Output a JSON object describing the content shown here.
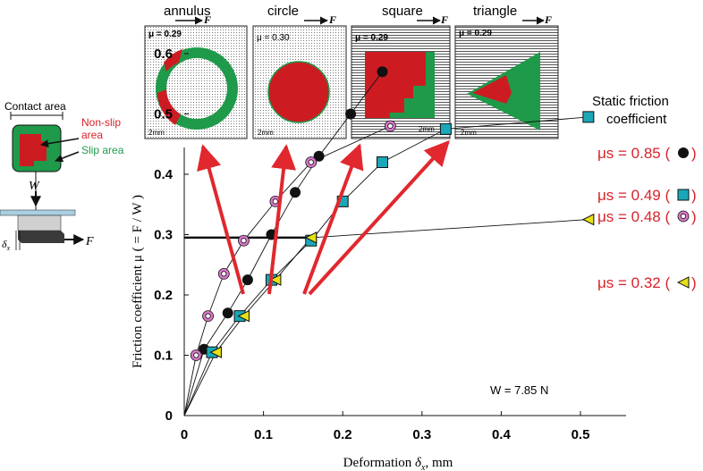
{
  "chart_data": {
    "type": "scatter",
    "xlabel_text": "Deformation",
    "xlabel_symbol": "δ",
    "xlabel_sub": "x",
    "xlabel_unit": ", mm",
    "ylabel": "Friction coefficient  μ ( = F / W )",
    "xlim": [
      0,
      0.55
    ],
    "ylim": [
      0,
      0.7
    ],
    "x_ticks": [
      "0",
      "0.1",
      "0.2",
      "0.3",
      "0.4",
      "0.5"
    ],
    "y_ticks": [
      "0",
      "0.1",
      "0.2",
      "0.3",
      "0.4",
      "0.5",
      "0.6"
    ],
    "x_tick_values": [
      0,
      0.1,
      0.2,
      0.3,
      0.4,
      0.5
    ],
    "y_tick_values": [
      0,
      0.1,
      0.2,
      0.3,
      0.4,
      0.5,
      0.6
    ],
    "load_annotation": "W = 7.85 N",
    "horizontal_reference": {
      "y": 0.295,
      "x_from": 0,
      "x_to": 0.16
    },
    "series": [
      {
        "name": "circle",
        "legend_text": "μs = 0.85 (",
        "legend_close": ")",
        "marker": "circle",
        "color": "#111111",
        "points": [
          [
            0.025,
            0.11
          ],
          [
            0.055,
            0.17
          ],
          [
            0.08,
            0.225
          ],
          [
            0.11,
            0.3
          ],
          [
            0.14,
            0.37
          ],
          [
            0.17,
            0.43
          ],
          [
            0.21,
            0.5
          ],
          [
            0.25,
            0.57
          ]
        ]
      },
      {
        "name": "square",
        "legend_text": "μs = 0.49 (",
        "legend_close": ")",
        "marker": "square",
        "color": "#1aa7b8",
        "points": [
          [
            0.035,
            0.105
          ],
          [
            0.07,
            0.165
          ],
          [
            0.11,
            0.225
          ],
          [
            0.16,
            0.29
          ],
          [
            0.2,
            0.355
          ],
          [
            0.25,
            0.42
          ],
          [
            0.33,
            0.475
          ],
          [
            0.51,
            0.495
          ]
        ]
      },
      {
        "name": "annulus",
        "legend_text": "μs = 0.48 (",
        "legend_close": ")",
        "marker": "ring",
        "color": "#d878c8",
        "points": [
          [
            0.015,
            0.1
          ],
          [
            0.03,
            0.165
          ],
          [
            0.05,
            0.235
          ],
          [
            0.075,
            0.29
          ],
          [
            0.115,
            0.355
          ],
          [
            0.16,
            0.42
          ],
          [
            0.26,
            0.48
          ]
        ]
      },
      {
        "name": "triangle",
        "legend_text": "μs = 0.32 (",
        "legend_close": ")",
        "marker": "triangle",
        "color": "#e6e016",
        "points": [
          [
            0.04,
            0.105
          ],
          [
            0.075,
            0.165
          ],
          [
            0.115,
            0.225
          ],
          [
            0.16,
            0.295
          ],
          [
            0.51,
            0.325
          ]
        ]
      }
    ],
    "legend_title_1": "Static friction",
    "legend_title_2": "coefficient",
    "legend_color": "#d8232a"
  },
  "panels": [
    {
      "name": "annulus",
      "title": "annulus",
      "mu": "μ = 0.29",
      "scale": "2mm",
      "force": "F"
    },
    {
      "name": "circle",
      "title": "circle",
      "mu": "μ = 0.30",
      "scale": "2mm",
      "force": "F"
    },
    {
      "name": "square",
      "title": "square",
      "mu": "μ = 0.29",
      "scale": "2mm",
      "force": "F"
    },
    {
      "name": "triangle",
      "title": "triangle",
      "mu": "μ = 0.29",
      "scale": "2mm",
      "force": "F"
    }
  ],
  "schematic": {
    "contact_area": "Contact area",
    "nonslip_1": "Non-slip",
    "nonslip_2": "area",
    "slip_area": "Slip area",
    "w": "W",
    "f": "F",
    "delta": "δ",
    "delta_sub": "x"
  },
  "colors": {
    "red_area": "#cc1c22",
    "green_area": "#1f9a4a",
    "arrow": "#e0282e"
  }
}
